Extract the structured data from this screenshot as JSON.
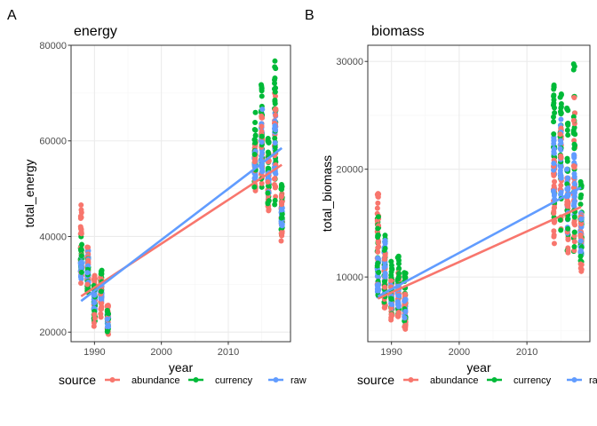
{
  "colors": {
    "abundance": "#F8766D",
    "currency": "#00BA38",
    "raw": "#619CFF",
    "grid_major": "#EBEBEB",
    "grid_minor": "#F5F5F5",
    "panel_border": "#333333"
  },
  "legend": {
    "title": "source",
    "entries": [
      "abundance",
      "currency",
      "raw"
    ]
  },
  "chart_data": [
    {
      "type": "scatter",
      "panel_label": "A",
      "title": "energy",
      "xlabel": "year",
      "ylabel": "total_energy",
      "xlim": [
        1986.5,
        2019.3
      ],
      "ylim": [
        18000,
        80000
      ],
      "x_ticks": [
        1990,
        2000,
        2010
      ],
      "x_tick_labels": [
        "1990",
        "2000",
        "2010"
      ],
      "y_ticks": [
        20000,
        40000,
        60000,
        80000
      ],
      "y_tick_labels": [
        "20000",
        "40000",
        "60000",
        "80000"
      ],
      "grid": true,
      "point_columns": [
        {
          "year": 1988,
          "series": "abundance",
          "min": 30000,
          "max": 47000
        },
        {
          "year": 1988,
          "series": "currency",
          "min": 31000,
          "max": 40000
        },
        {
          "year": 1988,
          "series": "raw",
          "min": 31000,
          "max": 36000
        },
        {
          "year": 1989,
          "series": "abundance",
          "min": 27000,
          "max": 38000
        },
        {
          "year": 1989,
          "series": "currency",
          "min": 28000,
          "max": 37000
        },
        {
          "year": 1989,
          "series": "raw",
          "min": 30000,
          "max": 37500
        },
        {
          "year": 1990,
          "series": "abundance",
          "min": 21000,
          "max": 32000
        },
        {
          "year": 1990,
          "series": "currency",
          "min": 22000,
          "max": 31000
        },
        {
          "year": 1990,
          "series": "raw",
          "min": 24000,
          "max": 29000
        },
        {
          "year": 1991,
          "series": "abundance",
          "min": 23000,
          "max": 32000
        },
        {
          "year": 1991,
          "series": "currency",
          "min": 24000,
          "max": 33000
        },
        {
          "year": 1991,
          "series": "raw",
          "min": 26000,
          "max": 30000
        },
        {
          "year": 1992,
          "series": "abundance",
          "min": 19000,
          "max": 26000
        },
        {
          "year": 1992,
          "series": "currency",
          "min": 20000,
          "max": 25000
        },
        {
          "year": 1992,
          "series": "raw",
          "min": 21000,
          "max": 24000
        },
        {
          "year": 2014,
          "series": "abundance",
          "min": 49000,
          "max": 60000
        },
        {
          "year": 2014,
          "series": "currency",
          "min": 50000,
          "max": 66000
        },
        {
          "year": 2014,
          "series": "raw",
          "min": 52000,
          "max": 58000
        },
        {
          "year": 2015,
          "series": "abundance",
          "min": 51000,
          "max": 66000
        },
        {
          "year": 2015,
          "series": "currency",
          "min": 50000,
          "max": 73000
        },
        {
          "year": 2015,
          "series": "raw",
          "min": 53000,
          "max": 67000
        },
        {
          "year": 2016,
          "series": "abundance",
          "min": 45000,
          "max": 58000
        },
        {
          "year": 2016,
          "series": "currency",
          "min": 46000,
          "max": 61000
        },
        {
          "year": 2016,
          "series": "raw",
          "min": 48000,
          "max": 54000
        },
        {
          "year": 2017,
          "series": "abundance",
          "min": 47000,
          "max": 70000
        },
        {
          "year": 2017,
          "series": "currency",
          "min": 46000,
          "max": 77000
        },
        {
          "year": 2017,
          "series": "raw",
          "min": 52000,
          "max": 66000
        },
        {
          "year": 2018,
          "series": "abundance",
          "min": 39000,
          "max": 49000
        },
        {
          "year": 2018,
          "series": "currency",
          "min": 40000,
          "max": 51000
        },
        {
          "year": 2018,
          "series": "raw",
          "min": 42000,
          "max": 46000
        }
      ],
      "trend_lines": [
        {
          "series": "abundance",
          "x": [
            1988,
            2018
          ],
          "y": [
            27500,
            55000
          ]
        },
        {
          "series": "raw",
          "x": [
            1988,
            2018
          ],
          "y": [
            26500,
            58500
          ]
        }
      ]
    },
    {
      "type": "scatter",
      "panel_label": "B",
      "title": "biomass",
      "xlabel": "year",
      "ylabel": "total_biomass",
      "xlim": [
        1986.5,
        2019.3
      ],
      "ylim": [
        4000,
        31500
      ],
      "x_ticks": [
        1990,
        2000,
        2010
      ],
      "x_tick_labels": [
        "1990",
        "2000",
        "2010"
      ],
      "y_ticks": [
        10000,
        20000,
        30000
      ],
      "y_tick_labels": [
        "10000",
        "20000",
        "30000"
      ],
      "grid": true,
      "point_columns": [
        {
          "year": 1988,
          "series": "abundance",
          "min": 8000,
          "max": 18000
        },
        {
          "year": 1988,
          "series": "currency",
          "min": 8000,
          "max": 15800
        },
        {
          "year": 1988,
          "series": "raw",
          "min": 8000,
          "max": 12000
        },
        {
          "year": 1989,
          "series": "abundance",
          "min": 7000,
          "max": 12500
        },
        {
          "year": 1989,
          "series": "currency",
          "min": 7500,
          "max": 14000
        },
        {
          "year": 1989,
          "series": "raw",
          "min": 8500,
          "max": 13500
        },
        {
          "year": 1990,
          "series": "abundance",
          "min": 6000,
          "max": 10000
        },
        {
          "year": 1990,
          "series": "currency",
          "min": 6500,
          "max": 11500
        },
        {
          "year": 1990,
          "series": "raw",
          "min": 7000,
          "max": 9500
        },
        {
          "year": 1991,
          "series": "abundance",
          "min": 6000,
          "max": 11000
        },
        {
          "year": 1991,
          "series": "currency",
          "min": 6500,
          "max": 12000
        },
        {
          "year": 1991,
          "series": "raw",
          "min": 7000,
          "max": 9500
        },
        {
          "year": 1992,
          "series": "abundance",
          "min": 5000,
          "max": 8500
        },
        {
          "year": 1992,
          "series": "currency",
          "min": 5500,
          "max": 10500
        },
        {
          "year": 1992,
          "series": "raw",
          "min": 6000,
          "max": 8000
        },
        {
          "year": 2014,
          "series": "abundance",
          "min": 13000,
          "max": 21000
        },
        {
          "year": 2014,
          "series": "currency",
          "min": 13500,
          "max": 28000
        },
        {
          "year": 2014,
          "series": "raw",
          "min": 17000,
          "max": 23000
        },
        {
          "year": 2015,
          "series": "abundance",
          "min": 14000,
          "max": 24000
        },
        {
          "year": 2015,
          "series": "currency",
          "min": 14000,
          "max": 27500
        },
        {
          "year": 2015,
          "series": "raw",
          "min": 17000,
          "max": 25000
        },
        {
          "year": 2016,
          "series": "abundance",
          "min": 11000,
          "max": 19500
        },
        {
          "year": 2016,
          "series": "currency",
          "min": 12000,
          "max": 26000
        },
        {
          "year": 2016,
          "series": "raw",
          "min": 14000,
          "max": 20000
        },
        {
          "year": 2017,
          "series": "abundance",
          "min": 12000,
          "max": 27000
        },
        {
          "year": 2017,
          "series": "currency",
          "min": 12000,
          "max": 30500
        },
        {
          "year": 2017,
          "series": "raw",
          "min": 15000,
          "max": 21500
        },
        {
          "year": 2018,
          "series": "abundance",
          "min": 10500,
          "max": 16000
        },
        {
          "year": 2018,
          "series": "currency",
          "min": 11000,
          "max": 19000
        },
        {
          "year": 2018,
          "series": "raw",
          "min": 12000,
          "max": 16000
        }
      ],
      "trend_lines": [
        {
          "series": "abundance",
          "x": [
            1988,
            2018
          ],
          "y": [
            8000,
            16500
          ]
        },
        {
          "series": "raw",
          "x": [
            1988,
            2018
          ],
          "y": [
            8200,
            18300
          ]
        }
      ]
    }
  ]
}
